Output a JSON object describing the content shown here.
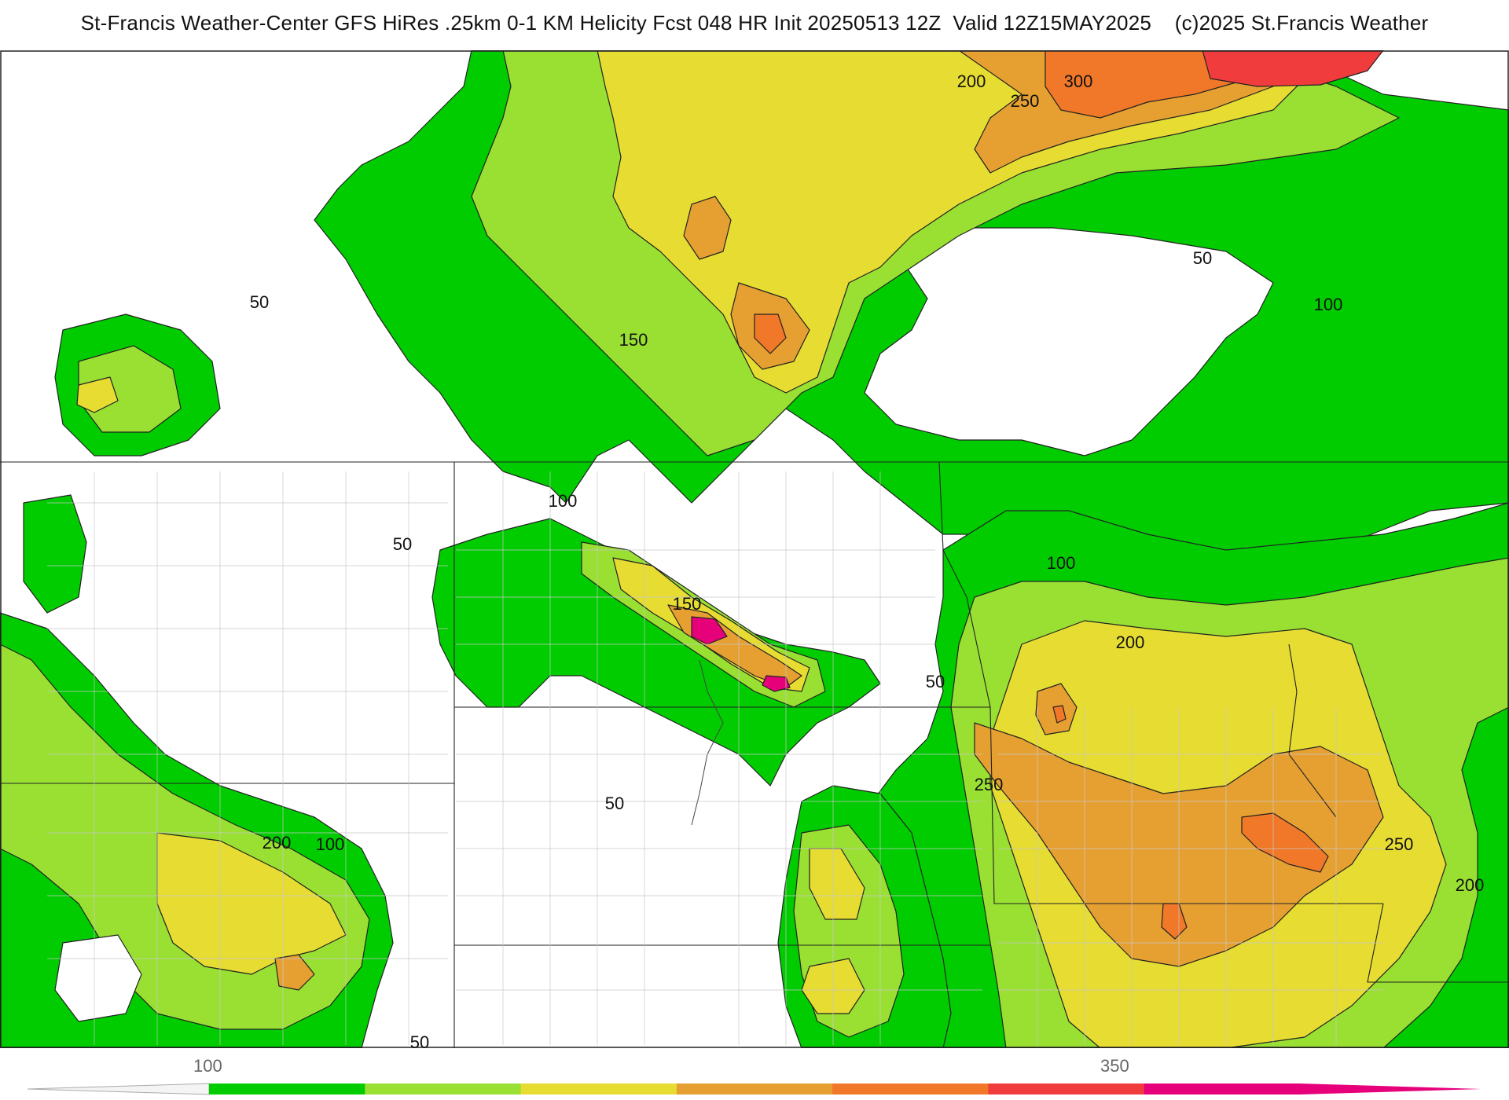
{
  "header": {
    "title": "St-Francis Weather-Center GFS HiRes .25km 0-1 KM Helicity Fcst 048 HR Init 20250513 12Z  Valid 12Z15MAY2025    (c)2025 St.Francis Weather"
  },
  "colorbar": {
    "colors": [
      "#00cc00",
      "#99e033",
      "#e6dc32",
      "#e6a032",
      "#f07828",
      "#f03c3c",
      "#e6007a"
    ],
    "tick_labels": [
      {
        "text": "100"
      },
      {
        "text": "350"
      }
    ]
  },
  "contour_labels": [
    {
      "id": "c50a",
      "text": "50"
    },
    {
      "id": "c50b",
      "text": "50"
    },
    {
      "id": "c50c",
      "text": "50"
    },
    {
      "id": "c50d",
      "text": "50"
    },
    {
      "id": "c50e",
      "text": "50"
    },
    {
      "id": "c50f",
      "text": "50"
    },
    {
      "id": "c100a",
      "text": "100"
    },
    {
      "id": "c100b",
      "text": "100"
    },
    {
      "id": "c100c",
      "text": "100"
    },
    {
      "id": "c100d",
      "text": "100"
    },
    {
      "id": "c150a",
      "text": "150"
    },
    {
      "id": "c150b",
      "text": "150"
    },
    {
      "id": "c200a",
      "text": "200"
    },
    {
      "id": "c200b",
      "text": "200"
    },
    {
      "id": "c200c",
      "text": "200"
    },
    {
      "id": "c200d",
      "text": "200"
    },
    {
      "id": "c250a",
      "text": "250"
    },
    {
      "id": "c250b",
      "text": "250"
    },
    {
      "id": "c250c",
      "text": "250"
    },
    {
      "id": "c300a",
      "text": "300"
    }
  ]
}
